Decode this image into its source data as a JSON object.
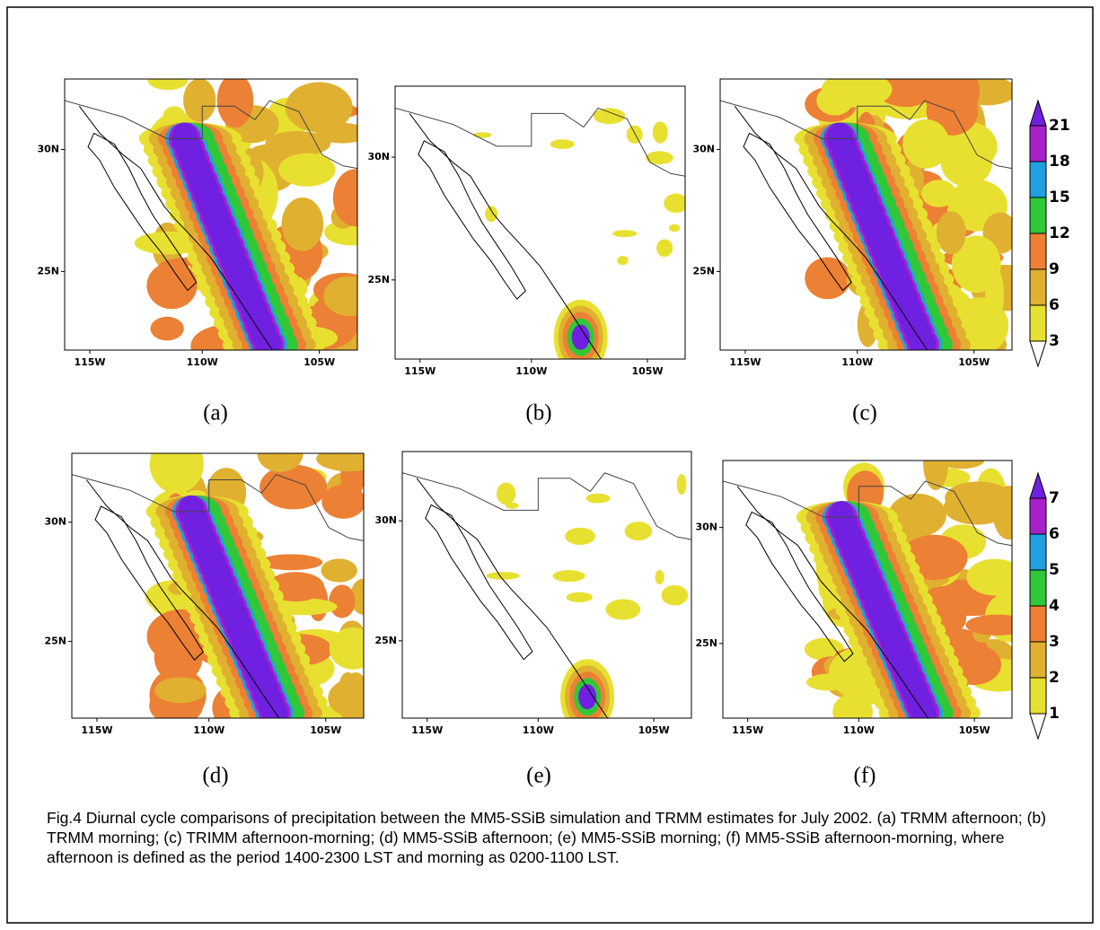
{
  "panels": [
    {
      "label": "(a)",
      "xticks": [
        "115W",
        "110W",
        "105W"
      ],
      "yticks": [
        "30N",
        "25N"
      ]
    },
    {
      "label": "(b)",
      "xticks": [
        "115W",
        "110W",
        "105W"
      ],
      "yticks": [
        "30N",
        "25N"
      ]
    },
    {
      "label": "(c)",
      "xticks": [
        "115W",
        "110W",
        "105W"
      ],
      "yticks": [
        "30N",
        "25N"
      ]
    },
    {
      "label": "(d)",
      "xticks": [
        "115W",
        "110W",
        "105W"
      ],
      "yticks": [
        "30N",
        "25N"
      ]
    },
    {
      "label": "(e)",
      "xticks": [
        "115W",
        "110W",
        "105W"
      ],
      "yticks": [
        "30N",
        "25N"
      ]
    },
    {
      "label": "(f)",
      "xticks": [
        "115W",
        "110W",
        "105W"
      ],
      "yticks": [
        "30N",
        "25N"
      ]
    }
  ],
  "colorbars": [
    {
      "labels": [
        3,
        6,
        9,
        12,
        15,
        18,
        21
      ],
      "colors": [
        "#e8e030",
        "#e0b030",
        "#ec8034",
        "#30c838",
        "#20a0e0",
        "#a820c8",
        "#7020e0"
      ]
    },
    {
      "labels": [
        1,
        2,
        3,
        4,
        5,
        6,
        7
      ],
      "colors": [
        "#e8e030",
        "#e0b030",
        "#ec8034",
        "#30c838",
        "#20a0e0",
        "#a820c8",
        "#7020e0"
      ]
    }
  ],
  "caption": "Fig.4 Diurnal cycle comparisons of precipitation between the MM5-SSiB simulation and TRMM estimates for July 2002. (a) TRMM afternoon; (b) TRMM morning; (c) TRIMM afternoon-morning; (d) MM5-SSiB afternoon; (e) MM5-SSiB morning; (f) MM5-SSiB afternoon-morning, where afternoon is defined as the period 1400-2300 LST and morning as 0200-1100 LST."
}
